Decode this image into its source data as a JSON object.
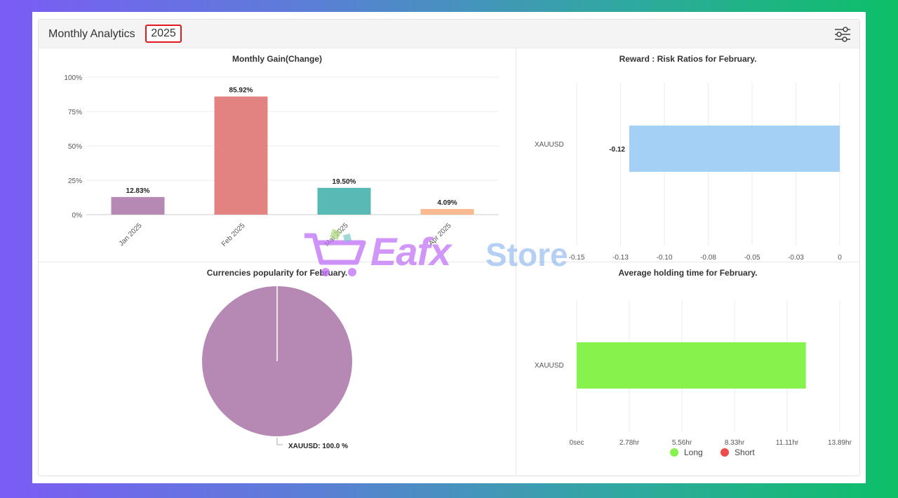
{
  "header": {
    "title": "Monthly Analytics",
    "year": "2025",
    "filter_icon": "sliders-icon"
  },
  "colors": {
    "year_highlight": "#e0191e",
    "jan": "#b689b5",
    "feb": "#e28381",
    "mar": "#58b9b5",
    "apr": "#fbb98f",
    "reward_bar": "#a4d0f6",
    "holding_long": "#86f34c",
    "holding_short": "#f04b4b",
    "pie": "#b689b5"
  },
  "chart_data": [
    {
      "type": "bar",
      "title": "Monthly Gain(Change)",
      "categories": [
        "Jan 2025",
        "Feb 2025",
        "Mar 2025",
        "Apr 2025"
      ],
      "values": [
        12.83,
        85.92,
        19.5,
        4.09
      ],
      "value_labels": [
        "12.83%",
        "85.92%",
        "19.50%",
        "4.09%"
      ],
      "y_ticks": [
        "0%",
        "25%",
        "50%",
        "75%",
        "100%"
      ],
      "ylim": [
        0,
        100
      ]
    },
    {
      "type": "bar",
      "orientation": "horizontal",
      "title": "Reward : Risk Ratios for February.",
      "categories": [
        "XAUUSD"
      ],
      "values": [
        -0.12
      ],
      "value_labels": [
        "-0.12"
      ],
      "x_ticks": [
        "-0.15",
        "-0.13",
        "-0.10",
        "-0.08",
        "-0.05",
        "-0.03",
        "0"
      ],
      "xlim": [
        -0.15,
        0
      ]
    },
    {
      "type": "pie",
      "title": "Currencies popularity for February.",
      "labels": [
        "XAUUSD"
      ],
      "values": [
        100.0
      ],
      "slice_labels": [
        "XAUUSD: 100.0 %"
      ]
    },
    {
      "type": "bar",
      "orientation": "horizontal",
      "title": "Average holding time for February.",
      "categories": [
        "XAUUSD"
      ],
      "values": [
        12.1
      ],
      "x_ticks": [
        "0sec",
        "2.78hr",
        "5.56hr",
        "8.33hr",
        "11.11hr",
        "13.89hr"
      ],
      "xlim": [
        0,
        13.89
      ],
      "legend": [
        {
          "label": "Long"
        },
        {
          "label": "Short"
        }
      ]
    }
  ],
  "watermark": {
    "text1": "Eafx",
    "text2": "Store"
  }
}
